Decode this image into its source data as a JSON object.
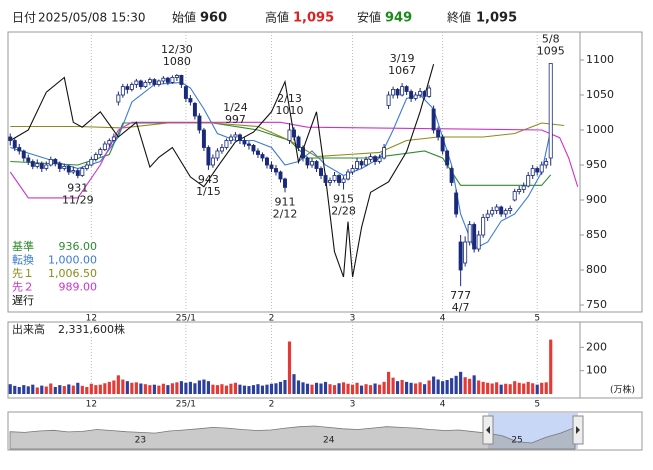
{
  "header": {
    "date_label": "日付",
    "date": "2025/05/08 15:30",
    "open_label": "始値",
    "open": 960,
    "high_label": "高値",
    "high": {
      "value": 1095,
      "label": "1,095"
    },
    "low_label": "安値",
    "low": 949,
    "close_label": "終値",
    "close": {
      "value": 1095,
      "label": "1,095"
    }
  },
  "chart_data": {
    "type": "candlestick",
    "candles": [
      [
        990,
        995,
        978,
        985
      ],
      [
        985,
        988,
        970,
        975
      ],
      [
        975,
        980,
        965,
        970
      ],
      [
        970,
        972,
        955,
        960
      ],
      [
        960,
        965,
        950,
        955
      ],
      [
        955,
        958,
        944,
        948
      ],
      [
        948,
        958,
        945,
        952
      ],
      [
        952,
        955,
        940,
        945
      ],
      [
        945,
        955,
        942,
        950
      ],
      [
        950,
        962,
        948,
        958
      ],
      [
        958,
        960,
        948,
        952
      ],
      [
        952,
        955,
        940,
        945
      ],
      [
        945,
        952,
        942,
        948
      ],
      [
        948,
        950,
        936,
        940
      ],
      [
        940,
        948,
        937,
        942
      ],
      [
        942,
        945,
        931,
        935
      ],
      [
        935,
        948,
        933,
        945
      ],
      [
        945,
        954,
        942,
        950
      ],
      [
        950,
        962,
        948,
        958
      ],
      [
        958,
        968,
        955,
        965
      ],
      [
        965,
        975,
        962,
        972
      ],
      [
        972,
        984,
        970,
        980
      ],
      [
        980,
        988,
        976,
        985
      ],
      [
        985,
        995,
        982,
        990
      ],
      [
        1040,
        1055,
        1035,
        1050
      ],
      [
        1050,
        1066,
        1046,
        1062
      ],
      [
        1062,
        1066,
        1052,
        1058
      ],
      [
        1058,
        1068,
        1055,
        1065
      ],
      [
        1065,
        1073,
        1060,
        1070
      ],
      [
        1070,
        1072,
        1058,
        1062
      ],
      [
        1062,
        1071,
        1060,
        1068
      ],
      [
        1068,
        1075,
        1064,
        1072
      ],
      [
        1072,
        1074,
        1062,
        1065
      ],
      [
        1065,
        1072,
        1062,
        1070
      ],
      [
        1070,
        1077,
        1066,
        1074
      ],
      [
        1074,
        1076,
        1064,
        1068
      ],
      [
        1068,
        1078,
        1066,
        1075
      ],
      [
        1075,
        1080,
        1070,
        1078
      ],
      [
        1078,
        1079,
        1060,
        1065
      ],
      [
        1062,
        1064,
        1040,
        1045
      ],
      [
        1045,
        1050,
        1035,
        1040
      ],
      [
        1038,
        1040,
        1015,
        1020
      ],
      [
        1020,
        1024,
        995,
        1000
      ],
      [
        1000,
        1003,
        970,
        975
      ],
      [
        975,
        978,
        943,
        950
      ],
      [
        950,
        965,
        946,
        960
      ],
      [
        960,
        974,
        956,
        970
      ],
      [
        970,
        980,
        966,
        975
      ],
      [
        975,
        988,
        972,
        985
      ],
      [
        985,
        994,
        980,
        990
      ],
      [
        990,
        997,
        985,
        993
      ],
      [
        993,
        995,
        980,
        985
      ],
      [
        985,
        990,
        976,
        980
      ],
      [
        980,
        984,
        972,
        978
      ],
      [
        978,
        980,
        965,
        970
      ],
      [
        970,
        974,
        960,
        965
      ],
      [
        965,
        968,
        955,
        960
      ],
      [
        960,
        962,
        945,
        950
      ],
      [
        950,
        955,
        940,
        945
      ],
      [
        945,
        950,
        935,
        940
      ],
      [
        940,
        942,
        925,
        930
      ],
      [
        930,
        932,
        911,
        918
      ],
      [
        985,
        1010,
        980,
        1000
      ],
      [
        1000,
        1004,
        985,
        990
      ],
      [
        990,
        992,
        970,
        975
      ],
      [
        975,
        978,
        955,
        960
      ],
      [
        960,
        962,
        945,
        950
      ],
      [
        950,
        960,
        946,
        955
      ],
      [
        955,
        957,
        940,
        945
      ],
      [
        945,
        948,
        930,
        935
      ],
      [
        935,
        938,
        920,
        925
      ],
      [
        925,
        932,
        920,
        928
      ],
      [
        928,
        940,
        925,
        935
      ],
      [
        935,
        937,
        920,
        925
      ],
      [
        925,
        934,
        915,
        930
      ],
      [
        930,
        944,
        928,
        940
      ],
      [
        940,
        950,
        936,
        945
      ],
      [
        945,
        960,
        942,
        955
      ],
      [
        955,
        958,
        945,
        950
      ],
      [
        950,
        962,
        948,
        958
      ],
      [
        958,
        966,
        954,
        962
      ],
      [
        962,
        964,
        950,
        955
      ],
      [
        955,
        965,
        952,
        960
      ],
      [
        960,
        980,
        958,
        975
      ],
      [
        1035,
        1055,
        1030,
        1050
      ],
      [
        1050,
        1062,
        1045,
        1058
      ],
      [
        1058,
        1060,
        1045,
        1050
      ],
      [
        1050,
        1067,
        1048,
        1062
      ],
      [
        1062,
        1064,
        1050,
        1055
      ],
      [
        1055,
        1058,
        1040,
        1045
      ],
      [
        1045,
        1054,
        1042,
        1050
      ],
      [
        1050,
        1060,
        1046,
        1055
      ],
      [
        1055,
        1057,
        1044,
        1048
      ],
      [
        1048,
        1064,
        1046,
        1060
      ],
      [
        1030,
        1035,
        995,
        1000
      ],
      [
        1000,
        1005,
        985,
        990
      ],
      [
        990,
        993,
        965,
        970
      ],
      [
        970,
        972,
        945,
        950
      ],
      [
        945,
        948,
        920,
        925
      ],
      [
        910,
        915,
        875,
        880
      ],
      [
        840,
        850,
        777,
        800
      ],
      [
        810,
        848,
        805,
        840
      ],
      [
        840,
        870,
        835,
        865
      ],
      [
        865,
        868,
        825,
        830
      ],
      [
        830,
        856,
        826,
        850
      ],
      [
        850,
        880,
        846,
        875
      ],
      [
        875,
        886,
        870,
        880
      ],
      [
        880,
        890,
        876,
        885
      ],
      [
        885,
        894,
        880,
        890
      ],
      [
        890,
        892,
        876,
        880
      ],
      [
        880,
        888,
        875,
        885
      ],
      [
        885,
        892,
        880,
        888
      ],
      [
        900,
        916,
        898,
        912
      ],
      [
        912,
        920,
        908,
        915
      ],
      [
        915,
        925,
        910,
        920
      ],
      [
        920,
        940,
        918,
        935
      ],
      [
        935,
        950,
        930,
        945
      ],
      [
        945,
        948,
        935,
        940
      ],
      [
        940,
        955,
        936,
        950
      ],
      [
        950,
        960,
        945,
        955
      ],
      [
        960,
        1095,
        949,
        1095
      ]
    ],
    "up_color": "#ffffff",
    "down_color": "#1a2a7a",
    "outline_color": "#1a2a7a",
    "xlim": [
      -0.5,
      126.5
    ],
    "ylim": [
      740,
      1140
    ],
    "yticks": [
      1100,
      1050,
      1000,
      950,
      900,
      850,
      800,
      750
    ],
    "xticks": [
      {
        "value": 18,
        "label": "12"
      },
      {
        "value": 39,
        "label": "25/1"
      },
      {
        "value": 58,
        "label": "2"
      },
      {
        "value": 76,
        "label": "3"
      },
      {
        "value": 96,
        "label": "4"
      },
      {
        "value": 117,
        "label": "5"
      }
    ],
    "grid": true,
    "lines": [
      {
        "name": "基準",
        "color": "#2e8b2e",
        "legend_value": {
          "value": 936,
          "label": "936.00"
        },
        "x": [
          0,
          15,
          22,
          25,
          35,
          45,
          55,
          62,
          66,
          80,
          92,
          96,
          100,
          118,
          120
        ],
        "values": [
          955,
          950,
          965,
          1010,
          1010,
          1010,
          1000,
          985,
          960,
          960,
          970,
          960,
          921,
          921,
          936
        ]
      },
      {
        "name": "転換",
        "color": "#3a7bd5",
        "legend_value": {
          "value": 1000,
          "label": "1,000.00"
        },
        "x": [
          0,
          5,
          10,
          15,
          20,
          24,
          27,
          32,
          38,
          40,
          43,
          46,
          50,
          54,
          58,
          61,
          64,
          67,
          70,
          74,
          78,
          82,
          85,
          88,
          91,
          94,
          96,
          98,
          100,
          103,
          106,
          109,
          112,
          115,
          118,
          120
        ],
        "values": [
          975,
          965,
          955,
          945,
          955,
          990,
          1040,
          1065,
          1068,
          1060,
          1030,
          995,
          985,
          985,
          975,
          950,
          955,
          970,
          950,
          935,
          945,
          960,
          1000,
          1045,
          1050,
          1030,
          990,
          950,
          880,
          830,
          840,
          870,
          880,
          905,
          940,
          1000
        ]
      },
      {
        "name": "先１",
        "color": "#8b8b1a",
        "legend_value": {
          "value": 1006.5,
          "label": "1,006.50"
        },
        "x": [
          0,
          15,
          25,
          35,
          45,
          55,
          62,
          68,
          75,
          82,
          88,
          95,
          105,
          112,
          118,
          123
        ],
        "values": [
          1005,
          1005,
          1003,
          1010,
          1010,
          1005,
          985,
          962,
          965,
          968,
          985,
          990,
          990,
          995,
          1010,
          1006.5
        ]
      },
      {
        "name": "先２",
        "color": "#cc33cc",
        "legend_value": {
          "value": 989,
          "label": "989.00"
        },
        "x": [
          0,
          4,
          15,
          20,
          24,
          27,
          60,
          66,
          118,
          122,
          124,
          126
        ],
        "values": [
          940,
          903,
          903,
          950,
          1000,
          1011,
          1011,
          1004,
          1000,
          989,
          960,
          919
        ]
      },
      {
        "name": "遅行",
        "color": "#111111",
        "x": [
          0,
          4,
          8,
          12,
          14,
          16,
          20,
          24,
          28,
          31,
          33,
          36,
          40,
          43,
          46,
          50,
          54,
          58,
          61,
          64,
          68,
          70,
          72,
          74,
          75,
          76,
          78,
          80,
          84,
          88,
          91,
          94
        ],
        "values": [
          985,
          1000,
          1054,
          1075,
          1011,
          1004,
          1026,
          990,
          1011,
          947,
          961,
          975,
          933,
          919,
          947,
          983,
          997,
          1026,
          1069,
          954,
          1026,
          933,
          826,
          790,
          869,
          790,
          861,
          911,
          926,
          969,
          1026,
          1094
        ]
      }
    ],
    "annotations": [
      {
        "x": 15,
        "value": 931,
        "date": "11/29",
        "position": "below"
      },
      {
        "x": 37,
        "value": 1080,
        "date": "12/30",
        "position": "above"
      },
      {
        "x": 44,
        "value": 943,
        "date": "1/15",
        "position": "below"
      },
      {
        "x": 50,
        "value": 997,
        "date": "1/24",
        "position": "above"
      },
      {
        "x": 61,
        "value": 911,
        "date": "2/12",
        "position": "below"
      },
      {
        "x": 62,
        "value": 1010,
        "date": "2/13",
        "position": "above"
      },
      {
        "x": 74,
        "value": 915,
        "date": "2/28",
        "position": "below"
      },
      {
        "x": 87,
        "value": 1067,
        "date": "3/19",
        "position": "above"
      },
      {
        "x": 100,
        "value": 777,
        "date": "4/7",
        "position": "below"
      },
      {
        "x": 120,
        "value": 1095,
        "date": "5/8",
        "position": "above"
      }
    ],
    "volume": {
      "title": "出来高",
      "total": {
        "value": 2331600,
        "label": "2,331,600株"
      },
      "unit": "(万株)",
      "up_color": "#e53935",
      "down_color": "#2b3f9e",
      "values": [
        42,
        35,
        30,
        38,
        33,
        40,
        28,
        36,
        32,
        45,
        30,
        38,
        34,
        41,
        36,
        48,
        35,
        30,
        44,
        38,
        40,
        46,
        52,
        58,
        80,
        62,
        55,
        48,
        50,
        45,
        42,
        38,
        40,
        36,
        44,
        38,
        46,
        50,
        55,
        48,
        52,
        46,
        58,
        62,
        55,
        40,
        38,
        42,
        36,
        44,
        48,
        40,
        36,
        34,
        38,
        42,
        36,
        40,
        44,
        46,
        52,
        60,
        225,
        85,
        58,
        50,
        44,
        40,
        48,
        45,
        52,
        42,
        38,
        46,
        50,
        44,
        40,
        48,
        36,
        42,
        38,
        45,
        40,
        52,
        95,
        70,
        55,
        60,
        52,
        48,
        45,
        50,
        42,
        58,
        75,
        62,
        55,
        60,
        68,
        78,
        95,
        72,
        65,
        80,
        58,
        52,
        48,
        45,
        50,
        40,
        44,
        42,
        55,
        48,
        45,
        52,
        46,
        40,
        48,
        50,
        233.16
      ],
      "ylim": [
        0,
        300
      ],
      "yticks": [
        200,
        100
      ]
    },
    "navigator": {
      "values": [
        960,
        955,
        965,
        970,
        958,
        962,
        975,
        968,
        960,
        955,
        950,
        965,
        972,
        980,
        990,
        985,
        975,
        968,
        972,
        985,
        995,
        1000,
        990,
        980,
        975,
        985,
        995,
        990,
        985,
        975,
        968,
        972,
        960,
        950,
        930,
        890,
        880,
        920,
        950,
        990
      ],
      "xticks": [
        {
          "value": 9,
          "label": "23"
        },
        {
          "value": 22,
          "label": "24"
        },
        {
          "value": 35,
          "label": "25"
        }
      ]
    }
  }
}
